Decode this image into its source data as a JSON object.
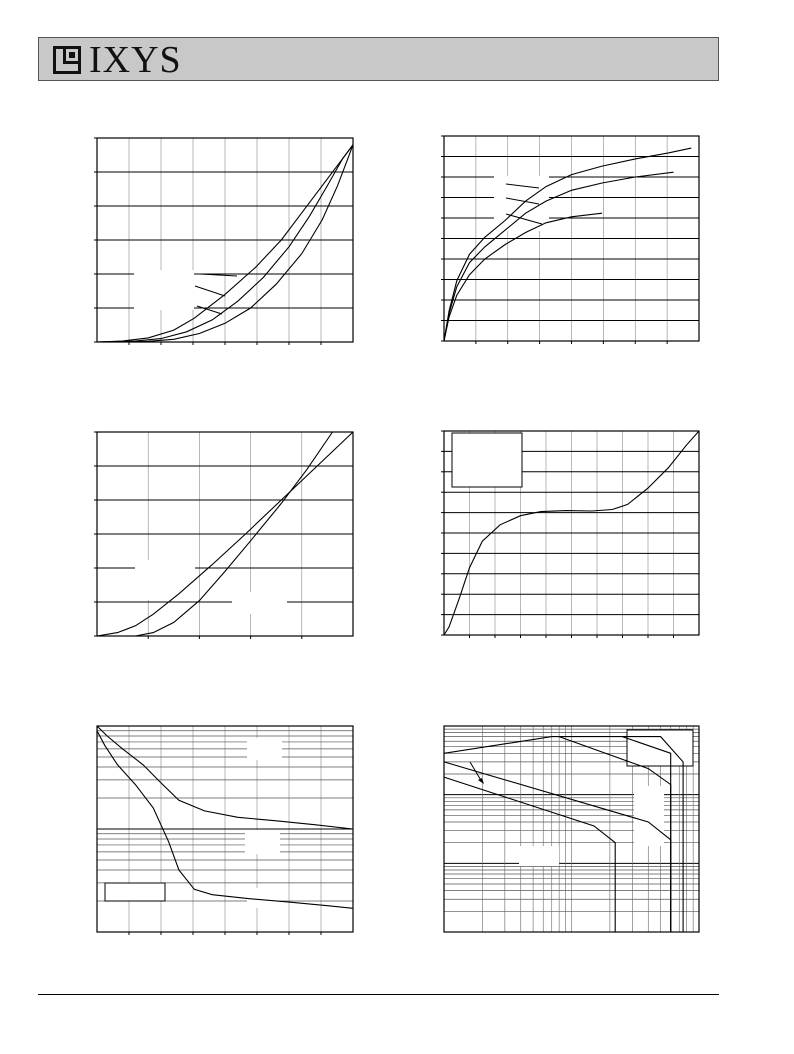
{
  "header": {
    "brand": "IXYS",
    "background": "#c8c8c8"
  },
  "chart_data": [
    {
      "type": "line",
      "panel": "top-left",
      "grid": true,
      "series": [
        {
          "values": [
            [
              0,
              0
            ],
            [
              0.1,
              0.3
            ],
            [
              0.2,
              1.2
            ],
            [
              0.3,
              3.5
            ],
            [
              0.38,
              7
            ],
            [
              0.5,
              14
            ],
            [
              0.62,
              22
            ],
            [
              0.72,
              30
            ],
            [
              0.8,
              38
            ],
            [
              0.88,
              46
            ],
            [
              0.96,
              54
            ],
            [
              1,
              58
            ]
          ]
        },
        {
          "values": [
            [
              0,
              0
            ],
            [
              0.15,
              0.3
            ],
            [
              0.25,
              1
            ],
            [
              0.35,
              3
            ],
            [
              0.45,
              6.5
            ],
            [
              0.55,
              12
            ],
            [
              0.65,
              19
            ],
            [
              0.75,
              28
            ],
            [
              0.83,
              37
            ],
            [
              0.9,
              46
            ],
            [
              0.96,
              54
            ],
            [
              1,
              58
            ]
          ]
        },
        {
          "values": [
            [
              0,
              0
            ],
            [
              0.2,
              0.2
            ],
            [
              0.3,
              0.8
            ],
            [
              0.4,
              2.5
            ],
            [
              0.5,
              5.5
            ],
            [
              0.6,
              10
            ],
            [
              0.7,
              17
            ],
            [
              0.8,
              26
            ],
            [
              0.88,
              36
            ],
            [
              0.94,
              46
            ],
            [
              0.98,
              54
            ],
            [
              1,
              58
            ]
          ]
        }
      ]
    },
    {
      "type": "line",
      "panel": "top-right",
      "grid": true,
      "series": [
        {
          "values": [
            [
              0,
              0
            ],
            [
              0.02,
              2.5
            ],
            [
              0.05,
              5
            ],
            [
              0.1,
              7.2
            ],
            [
              0.16,
              8.6
            ],
            [
              0.24,
              10
            ],
            [
              0.32,
              11.6
            ],
            [
              0.4,
              12.8
            ],
            [
              0.5,
              13.8
            ],
            [
              0.62,
              14.5
            ],
            [
              0.75,
              15.1
            ],
            [
              0.88,
              15.6
            ],
            [
              0.97,
              16
            ]
          ]
        },
        {
          "values": [
            [
              0,
              0
            ],
            [
              0.02,
              2.3
            ],
            [
              0.05,
              4.5
            ],
            [
              0.1,
              6.5
            ],
            [
              0.16,
              7.8
            ],
            [
              0.24,
              9.2
            ],
            [
              0.32,
              10.6
            ],
            [
              0.4,
              11.6
            ],
            [
              0.5,
              12.5
            ],
            [
              0.62,
              13.1
            ],
            [
              0.75,
              13.6
            ],
            [
              0.9,
              14
            ]
          ]
        },
        {
          "values": [
            [
              0,
              0
            ],
            [
              0.02,
              2
            ],
            [
              0.05,
              3.8
            ],
            [
              0.1,
              5.5
            ],
            [
              0.16,
              6.8
            ],
            [
              0.24,
              8
            ],
            [
              0.32,
              9
            ],
            [
              0.4,
              9.8
            ],
            [
              0.5,
              10.3
            ],
            [
              0.62,
              10.6
            ]
          ]
        }
      ]
    },
    {
      "type": "line",
      "panel": "middle-left",
      "grid": true,
      "series": [
        {
          "values": [
            [
              0,
              0
            ],
            [
              0.08,
              0.5
            ],
            [
              0.15,
              1.5
            ],
            [
              0.22,
              3.2
            ],
            [
              0.32,
              6.2
            ],
            [
              0.45,
              10.5
            ],
            [
              0.58,
              15
            ],
            [
              0.72,
              20
            ],
            [
              0.86,
              25
            ],
            [
              1,
              30
            ]
          ]
        },
        {
          "values": [
            [
              0,
              0
            ],
            [
              0.15,
              0
            ],
            [
              0.22,
              0.5
            ],
            [
              0.3,
              2
            ],
            [
              0.4,
              5.2
            ],
            [
              0.5,
              9.5
            ],
            [
              0.6,
              14
            ],
            [
              0.72,
              19.5
            ],
            [
              0.82,
              24.5
            ],
            [
              0.92,
              30
            ]
          ]
        }
      ]
    },
    {
      "type": "line",
      "panel": "middle-right",
      "grid": true,
      "series": [
        {
          "values": [
            [
              0,
              0
            ],
            [
              0.02,
              0.4
            ],
            [
              0.06,
              1.8
            ],
            [
              0.1,
              3.3
            ],
            [
              0.15,
              4.6
            ],
            [
              0.22,
              5.4
            ],
            [
              0.3,
              5.85
            ],
            [
              0.38,
              6.05
            ],
            [
              0.48,
              6.1
            ],
            [
              0.58,
              6.08
            ],
            [
              0.66,
              6.15
            ],
            [
              0.72,
              6.4
            ],
            [
              0.8,
              7.2
            ],
            [
              0.88,
              8.2
            ],
            [
              0.95,
              9.3
            ],
            [
              1,
              10
            ]
          ]
        }
      ]
    },
    {
      "type": "line",
      "panel": "bottom-left",
      "grid": true,
      "yscale": "log",
      "series": [
        {
          "values": [
            [
              0,
              10000
            ],
            [
              0.04,
              8000
            ],
            [
              0.1,
              6000
            ],
            [
              0.18,
              4200
            ],
            [
              0.25,
              2800
            ],
            [
              0.32,
              1900
            ],
            [
              0.42,
              1500
            ],
            [
              0.55,
              1300
            ],
            [
              0.7,
              1200
            ],
            [
              0.85,
              1100
            ],
            [
              1,
              1000
            ]
          ]
        },
        {
          "values": [
            [
              0,
              9000
            ],
            [
              0.03,
              6500
            ],
            [
              0.08,
              4200
            ],
            [
              0.15,
              2700
            ],
            [
              0.22,
              1600
            ],
            [
              0.28,
              750
            ],
            [
              0.32,
              400
            ],
            [
              0.38,
              260
            ],
            [
              0.45,
              230
            ],
            [
              0.6,
              210
            ],
            [
              0.75,
              195
            ],
            [
              0.9,
              180
            ],
            [
              1,
              170
            ]
          ]
        }
      ]
    },
    {
      "type": "line",
      "panel": "bottom-right",
      "grid": true,
      "xscale": "log",
      "yscale": "log",
      "series": [
        {
          "values": [
            [
              0.01,
              40
            ],
            [
              0.07,
              70
            ],
            [
              0.5,
              70
            ],
            [
              0.75,
              30
            ],
            [
              0.75,
              0.1
            ]
          ]
        },
        {
          "values": [
            [
              0.01,
              30
            ],
            [
              0.4,
              4
            ],
            [
              0.6,
              2.2
            ],
            [
              0.6,
              0.1
            ]
          ]
        },
        {
          "values": [
            [
              0.01,
              18
            ],
            [
              0.15,
              3.5
            ],
            [
              0.22,
              2
            ],
            [
              0.22,
              0.1
            ]
          ]
        },
        {
          "values": [
            [
              0.08,
              70
            ],
            [
              0.4,
              24
            ],
            [
              0.6,
              14
            ],
            [
              0.6,
              0.1
            ]
          ]
        },
        {
          "values": [
            [
              0.25,
              70
            ],
            [
              0.6,
              40
            ],
            [
              0.6,
              0.1
            ]
          ]
        }
      ]
    }
  ]
}
